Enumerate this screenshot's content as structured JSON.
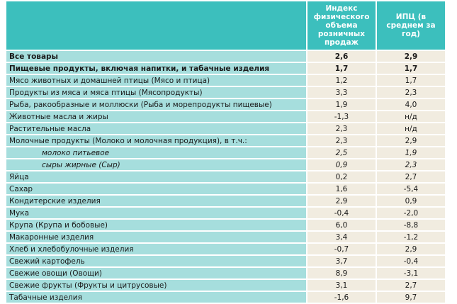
{
  "table": {
    "headers": [
      "",
      "Индекс физического объема розничных продаж",
      "ИПЦ (в среднем за год)"
    ],
    "rows": [
      {
        "name": "Все товары",
        "index": "2,6",
        "cpi": "2,9",
        "style": "bold"
      },
      {
        "name": "Пищевые продукты, включая напитки, и табачные изделия",
        "index": "1,7",
        "cpi": "1,7",
        "style": "bold"
      },
      {
        "name": "Мясо животных и домашней птицы (Мясо и птица)",
        "index": "1,2",
        "cpi": "1,7",
        "style": ""
      },
      {
        "name": "Продукты из мяса и мяса птицы (Мясопродукты)",
        "index": "3,3",
        "cpi": "2,3",
        "style": ""
      },
      {
        "name": "Рыба, ракообразные и моллюски (Рыба и морепродукты пищевые)",
        "index": "1,9",
        "cpi": "4,0",
        "style": ""
      },
      {
        "name": "Животные масла и жиры",
        "index": "-1,3",
        "cpi": "н/д",
        "style": ""
      },
      {
        "name": "Растительные масла",
        "index": "2,3",
        "cpi": "н/д",
        "style": ""
      },
      {
        "name": "Молочные продукты (Молоко и молочная продукция), в т.ч.:",
        "index": "2,3",
        "cpi": "2,9",
        "style": ""
      },
      {
        "name": "молоко питьевое",
        "index": "2,5",
        "cpi": "1,9",
        "style": "italic"
      },
      {
        "name": "сыры жирные (Сыр)",
        "index": "0,9",
        "cpi": "2,3",
        "style": "italic"
      },
      {
        "name": "Яйца",
        "index": "0,2",
        "cpi": "2,7",
        "style": ""
      },
      {
        "name": "Сахар",
        "index": "1,6",
        "cpi": "-5,4",
        "style": ""
      },
      {
        "name": "Кондитерские изделия",
        "index": "2,9",
        "cpi": "0,9",
        "style": ""
      },
      {
        "name": "Мука",
        "index": "-0,4",
        "cpi": "-2,0",
        "style": ""
      },
      {
        "name": "Крупа (Крупа и бобовые)",
        "index": "6,0",
        "cpi": "-8,8",
        "style": ""
      },
      {
        "name": "Макаронные изделия",
        "index": "3,4",
        "cpi": "-1,2",
        "style": ""
      },
      {
        "name": "Хлеб и хлебобулочные изделия",
        "index": "-0,7",
        "cpi": "2,9",
        "style": ""
      },
      {
        "name": "Свежий картофель",
        "index": "3,7",
        "cpi": "-0,4",
        "style": ""
      },
      {
        "name": "Свежие овощи (Овощи)",
        "index": "8,9",
        "cpi": "-3,1",
        "style": ""
      },
      {
        "name": "Свежие фрукты (Фрукты и цитрусовые)",
        "index": "3,1",
        "cpi": "2,7",
        "style": ""
      },
      {
        "name": "Табачные изделия",
        "index": "-1,6",
        "cpi": "9,7",
        "style": ""
      }
    ]
  },
  "colors": {
    "header_bg": "#3cbfbd",
    "name_cell_bg": "#a6dedd",
    "value_cell_bg": "#f1ece0"
  }
}
